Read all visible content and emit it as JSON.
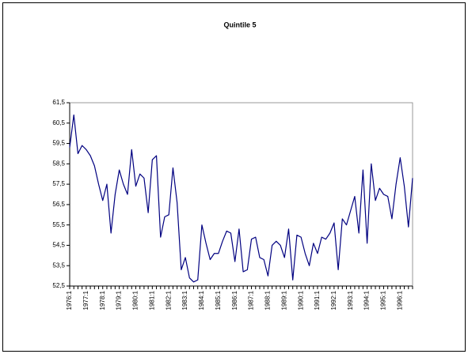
{
  "chart_data": {
    "type": "line",
    "title": "Quintile 5",
    "color": "#000080",
    "categories": [
      "1976:1",
      null,
      null,
      null,
      "1977:1",
      null,
      null,
      null,
      "1978:1",
      null,
      null,
      null,
      "1979:1",
      null,
      null,
      null,
      "1980:1",
      null,
      null,
      null,
      "1981:1",
      null,
      null,
      null,
      "1982:1",
      null,
      null,
      null,
      "1983:1",
      null,
      null,
      null,
      "1984:1",
      null,
      null,
      null,
      "1985:1",
      null,
      null,
      null,
      "1986:1",
      null,
      null,
      null,
      "1987:1",
      null,
      null,
      null,
      "1988:1",
      null,
      null,
      null,
      "1989:1",
      null,
      null,
      null,
      "1990:1",
      null,
      null,
      null,
      "1991:1",
      null,
      null,
      null,
      "1992:1",
      null,
      null,
      null,
      "1993:1",
      null,
      null,
      null,
      "1994:1",
      null,
      null,
      null,
      "1995:1",
      null,
      null,
      null,
      "1996:1",
      null,
      null,
      null
    ],
    "values": [
      59.3,
      60.9,
      59.0,
      59.4,
      59.2,
      58.9,
      58.4,
      57.5,
      56.7,
      57.5,
      55.1,
      57.0,
      58.2,
      57.5,
      57.0,
      59.2,
      57.4,
      58.0,
      57.8,
      56.1,
      58.7,
      58.9,
      54.9,
      55.9,
      56.0,
      58.3,
      56.6,
      53.3,
      53.9,
      52.9,
      52.7,
      52.8,
      55.5,
      54.6,
      53.8,
      54.1,
      54.1,
      54.7,
      55.2,
      55.1,
      53.7,
      55.3,
      53.2,
      53.3,
      54.8,
      54.9,
      53.9,
      53.8,
      53.0,
      54.5,
      54.7,
      54.5,
      53.9,
      55.3,
      52.8,
      55.0,
      54.9,
      54.1,
      53.5,
      54.6,
      54.1,
      54.9,
      54.8,
      55.1,
      55.6,
      53.3,
      55.8,
      55.5,
      56.2,
      56.9,
      55.1,
      58.2,
      54.6,
      58.5,
      56.7,
      57.3,
      57.0,
      56.9,
      55.8,
      57.5,
      58.8,
      57.4,
      55.4,
      57.8
    ],
    "ylim": [
      52.5,
      61.5
    ],
    "yticks": [
      {
        "value": 52.5,
        "label": "52,5"
      },
      {
        "value": 53.5,
        "label": "53,5"
      },
      {
        "value": 54.5,
        "label": "54,5"
      },
      {
        "value": 55.5,
        "label": "55,5"
      },
      {
        "value": 56.5,
        "label": "56,5"
      },
      {
        "value": 57.5,
        "label": "57,5"
      },
      {
        "value": 58.5,
        "label": "58,5"
      },
      {
        "value": 59.5,
        "label": "59,5"
      },
      {
        "value": 60.5,
        "label": "60,5"
      },
      {
        "value": 61.5,
        "label": "61,5"
      }
    ]
  }
}
